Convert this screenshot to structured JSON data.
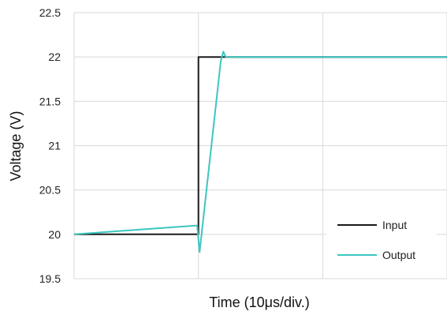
{
  "chart_data": {
    "type": "line",
    "title": "",
    "xlabel": "Time (10μs/div.)",
    "ylabel": "Voltage (V)",
    "xlim": [
      0,
      30
    ],
    "ylim": [
      19.5,
      22.5
    ],
    "x_gridlines": [
      0,
      10,
      20,
      30
    ],
    "yticks": [
      19.5,
      20,
      20.5,
      21,
      21.5,
      22,
      22.5
    ],
    "ytick_labels": [
      "19.5",
      "20",
      "20.5",
      "21",
      "21.5",
      "22",
      "22.5"
    ],
    "grid": true,
    "legend_position": "bottom-right",
    "series": [
      {
        "name": "Input",
        "color": "#1a1a1a",
        "x": [
          0,
          10,
          10,
          30
        ],
        "y": [
          20,
          20,
          22,
          22
        ]
      },
      {
        "name": "Output",
        "color": "#3cc6c0",
        "x": [
          0,
          9.9,
          10.1,
          11.8,
          12.0,
          12.2,
          30
        ],
        "y": [
          20,
          20.1,
          19.8,
          21.95,
          22.06,
          22.0,
          22.0
        ]
      }
    ]
  }
}
